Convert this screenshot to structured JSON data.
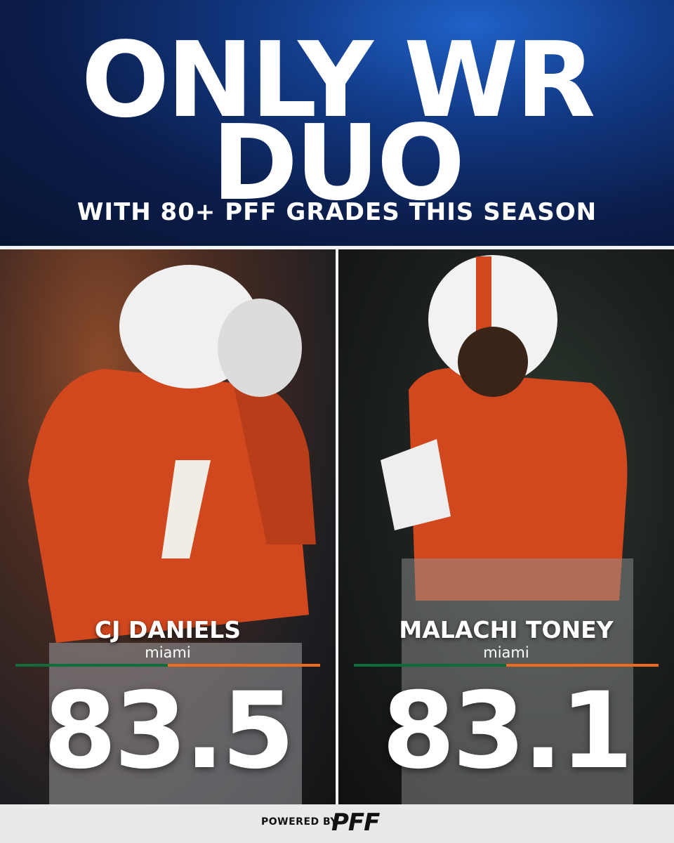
{
  "header": {
    "title_line1": "ONLY WR",
    "title_line2": "DUO",
    "subtitle": "WITH 80+ PFF GRADES THIS SEASON"
  },
  "players": [
    {
      "name": "CJ DANIELS",
      "school": "miami",
      "grade": 83.5
    },
    {
      "name": "MALACHI TONEY",
      "school": "miami",
      "grade": 83.1
    }
  ],
  "footer": {
    "powered_by": "POWERED BY",
    "brand": "PFF"
  }
}
